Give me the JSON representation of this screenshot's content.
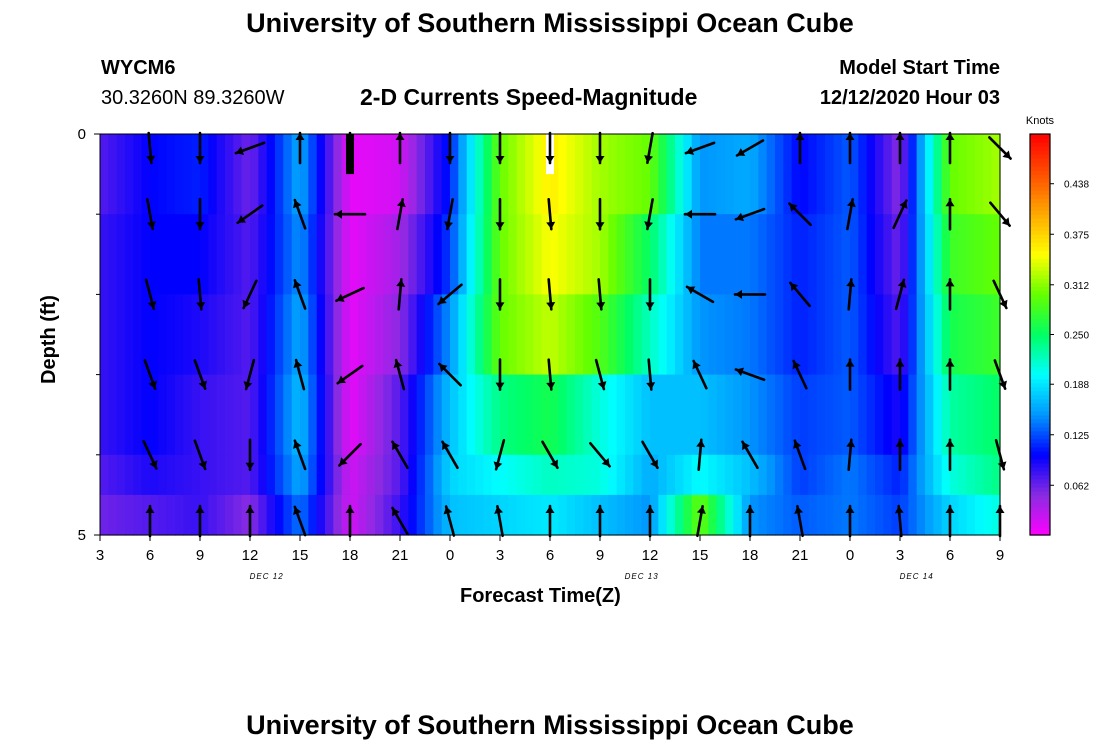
{
  "header": {
    "title": "University of Southern Mississippi Ocean Cube",
    "station_id": "WYCM6",
    "station_coords": "30.3260N 89.3260W",
    "subtitle": "2-D Currents Speed-Magnitude",
    "model_start_label": "Model Start Time",
    "model_start_value": "12/12/2020 Hour 03"
  },
  "footer": {
    "title": "University of Southern Mississippi Ocean Cube"
  },
  "chart_data": {
    "type": "heatmap",
    "title": "2-D Currents Speed-Magnitude",
    "xlabel": "Forecast Time(Z)",
    "ylabel": "Depth (ft)",
    "xlim": [
      3,
      57
    ],
    "ylim": [
      0,
      5
    ],
    "x_ticks": [
      3,
      6,
      9,
      12,
      15,
      18,
      21,
      24,
      27,
      30,
      33,
      36,
      39,
      42,
      45,
      48,
      51,
      54,
      57
    ],
    "x_tick_labels": [
      "3",
      "6",
      "9",
      "12",
      "15",
      "18",
      "21",
      "0",
      "3",
      "6",
      "9",
      "12",
      "15",
      "18",
      "21",
      "0",
      "3",
      "6",
      "9"
    ],
    "date_labels": [
      {
        "x": 13,
        "text": "DEC 12"
      },
      {
        "x": 35.5,
        "text": "DEC 13"
      },
      {
        "x": 52,
        "text": "DEC 14"
      }
    ],
    "y_tick_labels": [
      {
        "value": 0,
        "text": "0"
      },
      {
        "value": 5,
        "text": "5"
      }
    ],
    "y_minor_ticks": [
      1,
      2,
      3,
      4
    ],
    "colorbar": {
      "units": "Knots",
      "vmin": 0.0,
      "vmax": 0.5,
      "ticks": [
        0.062,
        0.125,
        0.188,
        0.25,
        0.312,
        0.375,
        0.438
      ],
      "tick_labels": [
        "0.062",
        "0.125",
        "0.188",
        "0.250",
        "0.312",
        "0.375",
        "0.438"
      ],
      "colors": [
        "#ff00ff",
        "#8a2be2",
        "#0000ff",
        "#0096ff",
        "#00ffff",
        "#00ff64",
        "#64ff00",
        "#ffff00",
        "#ffaa00",
        "#ff5000",
        "#ff0000"
      ]
    },
    "depth_rows": [
      0,
      1,
      2,
      3,
      4
    ],
    "speed_anchor_times": [
      3,
      6,
      9,
      12,
      15,
      18,
      21,
      24,
      27,
      30,
      33,
      36,
      39,
      42,
      45,
      48,
      51,
      54,
      57
    ],
    "speed_anchors": [
      [
        0.07,
        0.1,
        0.11,
        0.06,
        0.16,
        0.01,
        0.02,
        0.11,
        0.3,
        0.36,
        0.32,
        0.3,
        0.15,
        0.16,
        0.1,
        0.13,
        0.05,
        0.3,
        0.32
      ],
      [
        0.08,
        0.1,
        0.1,
        0.07,
        0.15,
        0.01,
        0.04,
        0.12,
        0.3,
        0.35,
        0.32,
        0.25,
        0.14,
        0.14,
        0.11,
        0.13,
        0.06,
        0.28,
        0.3
      ],
      [
        0.08,
        0.1,
        0.09,
        0.07,
        0.16,
        0.01,
        0.05,
        0.15,
        0.3,
        0.33,
        0.29,
        0.22,
        0.15,
        0.14,
        0.11,
        0.13,
        0.07,
        0.26,
        0.28
      ],
      [
        0.08,
        0.1,
        0.08,
        0.07,
        0.17,
        0.01,
        0.07,
        0.17,
        0.24,
        0.26,
        0.21,
        0.17,
        0.17,
        0.15,
        0.12,
        0.13,
        0.09,
        0.23,
        0.25
      ],
      [
        0.07,
        0.09,
        0.08,
        0.07,
        0.16,
        0.02,
        0.07,
        0.18,
        0.2,
        0.22,
        0.21,
        0.16,
        0.2,
        0.17,
        0.12,
        0.14,
        0.11,
        0.21,
        0.24
      ]
    ],
    "bottom_row_speeds": [
      0.06,
      0.07,
      0.08,
      0.05,
      0.14,
      0.02,
      0.08,
      0.17,
      0.18,
      0.19,
      0.17,
      0.15,
      0.3,
      0.15,
      0.13,
      0.14,
      0.12,
      0.18,
      0.21
    ],
    "missing_data_bars": [
      {
        "x": 18.0,
        "depth_from": 0,
        "depth_to": 0.5,
        "color": "#000000"
      },
      {
        "x": 30.0,
        "depth_from": 0,
        "depth_to": 0.5,
        "color": "#ffffff"
      }
    ],
    "vector_times": [
      6,
      9,
      12,
      15,
      18,
      21,
      24,
      27,
      30,
      33,
      36,
      39,
      42,
      45,
      48,
      51,
      54,
      57
    ],
    "vector_depths": [
      0,
      1,
      2,
      3,
      4,
      5
    ],
    "vector_direction_deg": [
      [
        175,
        180,
        250,
        0,
        0,
        0,
        180,
        180,
        180,
        180,
        190,
        250,
        240,
        0,
        0,
        0,
        0,
        135
      ],
      [
        170,
        180,
        235,
        340,
        270,
        10,
        190,
        180,
        175,
        180,
        190,
        270,
        250,
        315,
        10,
        25,
        0,
        140
      ],
      [
        165,
        175,
        205,
        340,
        245,
        5,
        230,
        180,
        175,
        175,
        180,
        300,
        270,
        320,
        5,
        15,
        0,
        155
      ],
      [
        160,
        160,
        195,
        345,
        235,
        345,
        315,
        180,
        175,
        165,
        175,
        335,
        290,
        335,
        0,
        0,
        0,
        160
      ],
      [
        155,
        160,
        180,
        340,
        225,
        330,
        330,
        195,
        150,
        140,
        150,
        5,
        330,
        340,
        5,
        0,
        0,
        165
      ],
      [
        0,
        0,
        0,
        340,
        0,
        330,
        345,
        350,
        0,
        0,
        0,
        10,
        0,
        350,
        0,
        355,
        0,
        0
      ]
    ]
  }
}
